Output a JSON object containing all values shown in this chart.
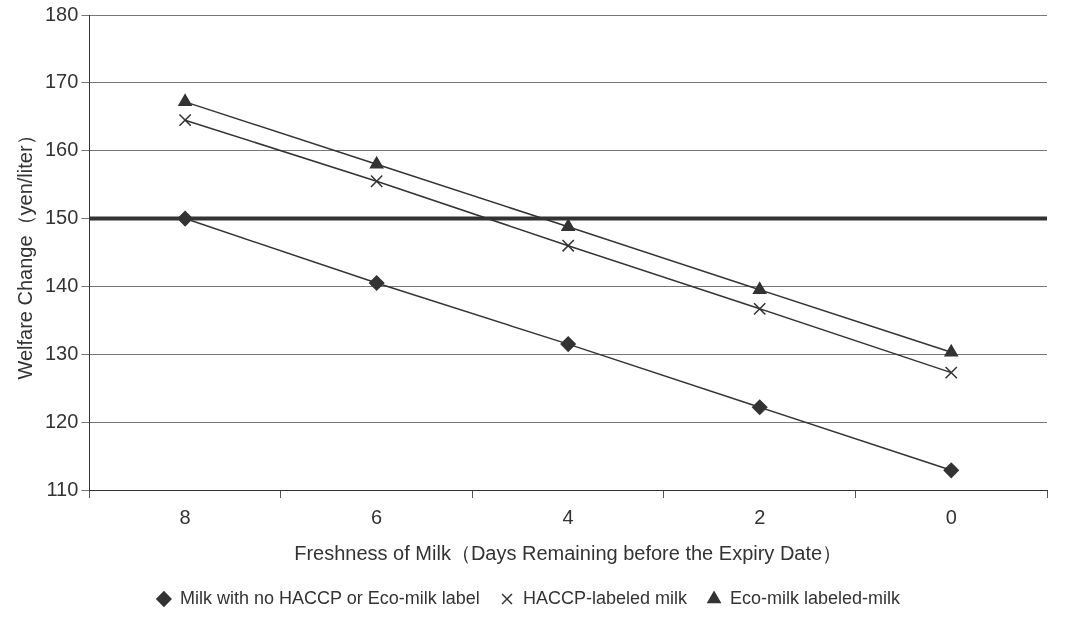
{
  "chart_data": {
    "type": "line",
    "xlabel": "Freshness of Milk（Days Remaining before the Expiry Date）",
    "ylabel": "Welfare Change（yen/liter）",
    "categories": [
      "8",
      "6",
      "4",
      "2",
      "0"
    ],
    "series": [
      {
        "name": "Milk with no HACCP or Eco-milk label",
        "color": "#333333",
        "marker": "diamond",
        "values": [
          150,
          140.5,
          131.5,
          122.2,
          112.9
        ]
      },
      {
        "name": "HACCP-labeled milk",
        "color": "#333333",
        "marker": "cross",
        "values": [
          164.5,
          155.5,
          146,
          136.7,
          127.3
        ]
      },
      {
        "name": "Eco-milk labeled-milk",
        "color": "#333333",
        "marker": "triangle",
        "values": [
          167.2,
          158,
          148.8,
          139.5,
          130.3
        ]
      }
    ],
    "ylim": [
      110,
      180
    ],
    "yticks": [
      110,
      120,
      130,
      140,
      150,
      160,
      170,
      180
    ],
    "ref_lines": [
      {
        "axis": "y",
        "value": 150,
        "color": "#333333"
      }
    ],
    "grid": "y",
    "legend": "bottom",
    "line_style": "solid"
  }
}
